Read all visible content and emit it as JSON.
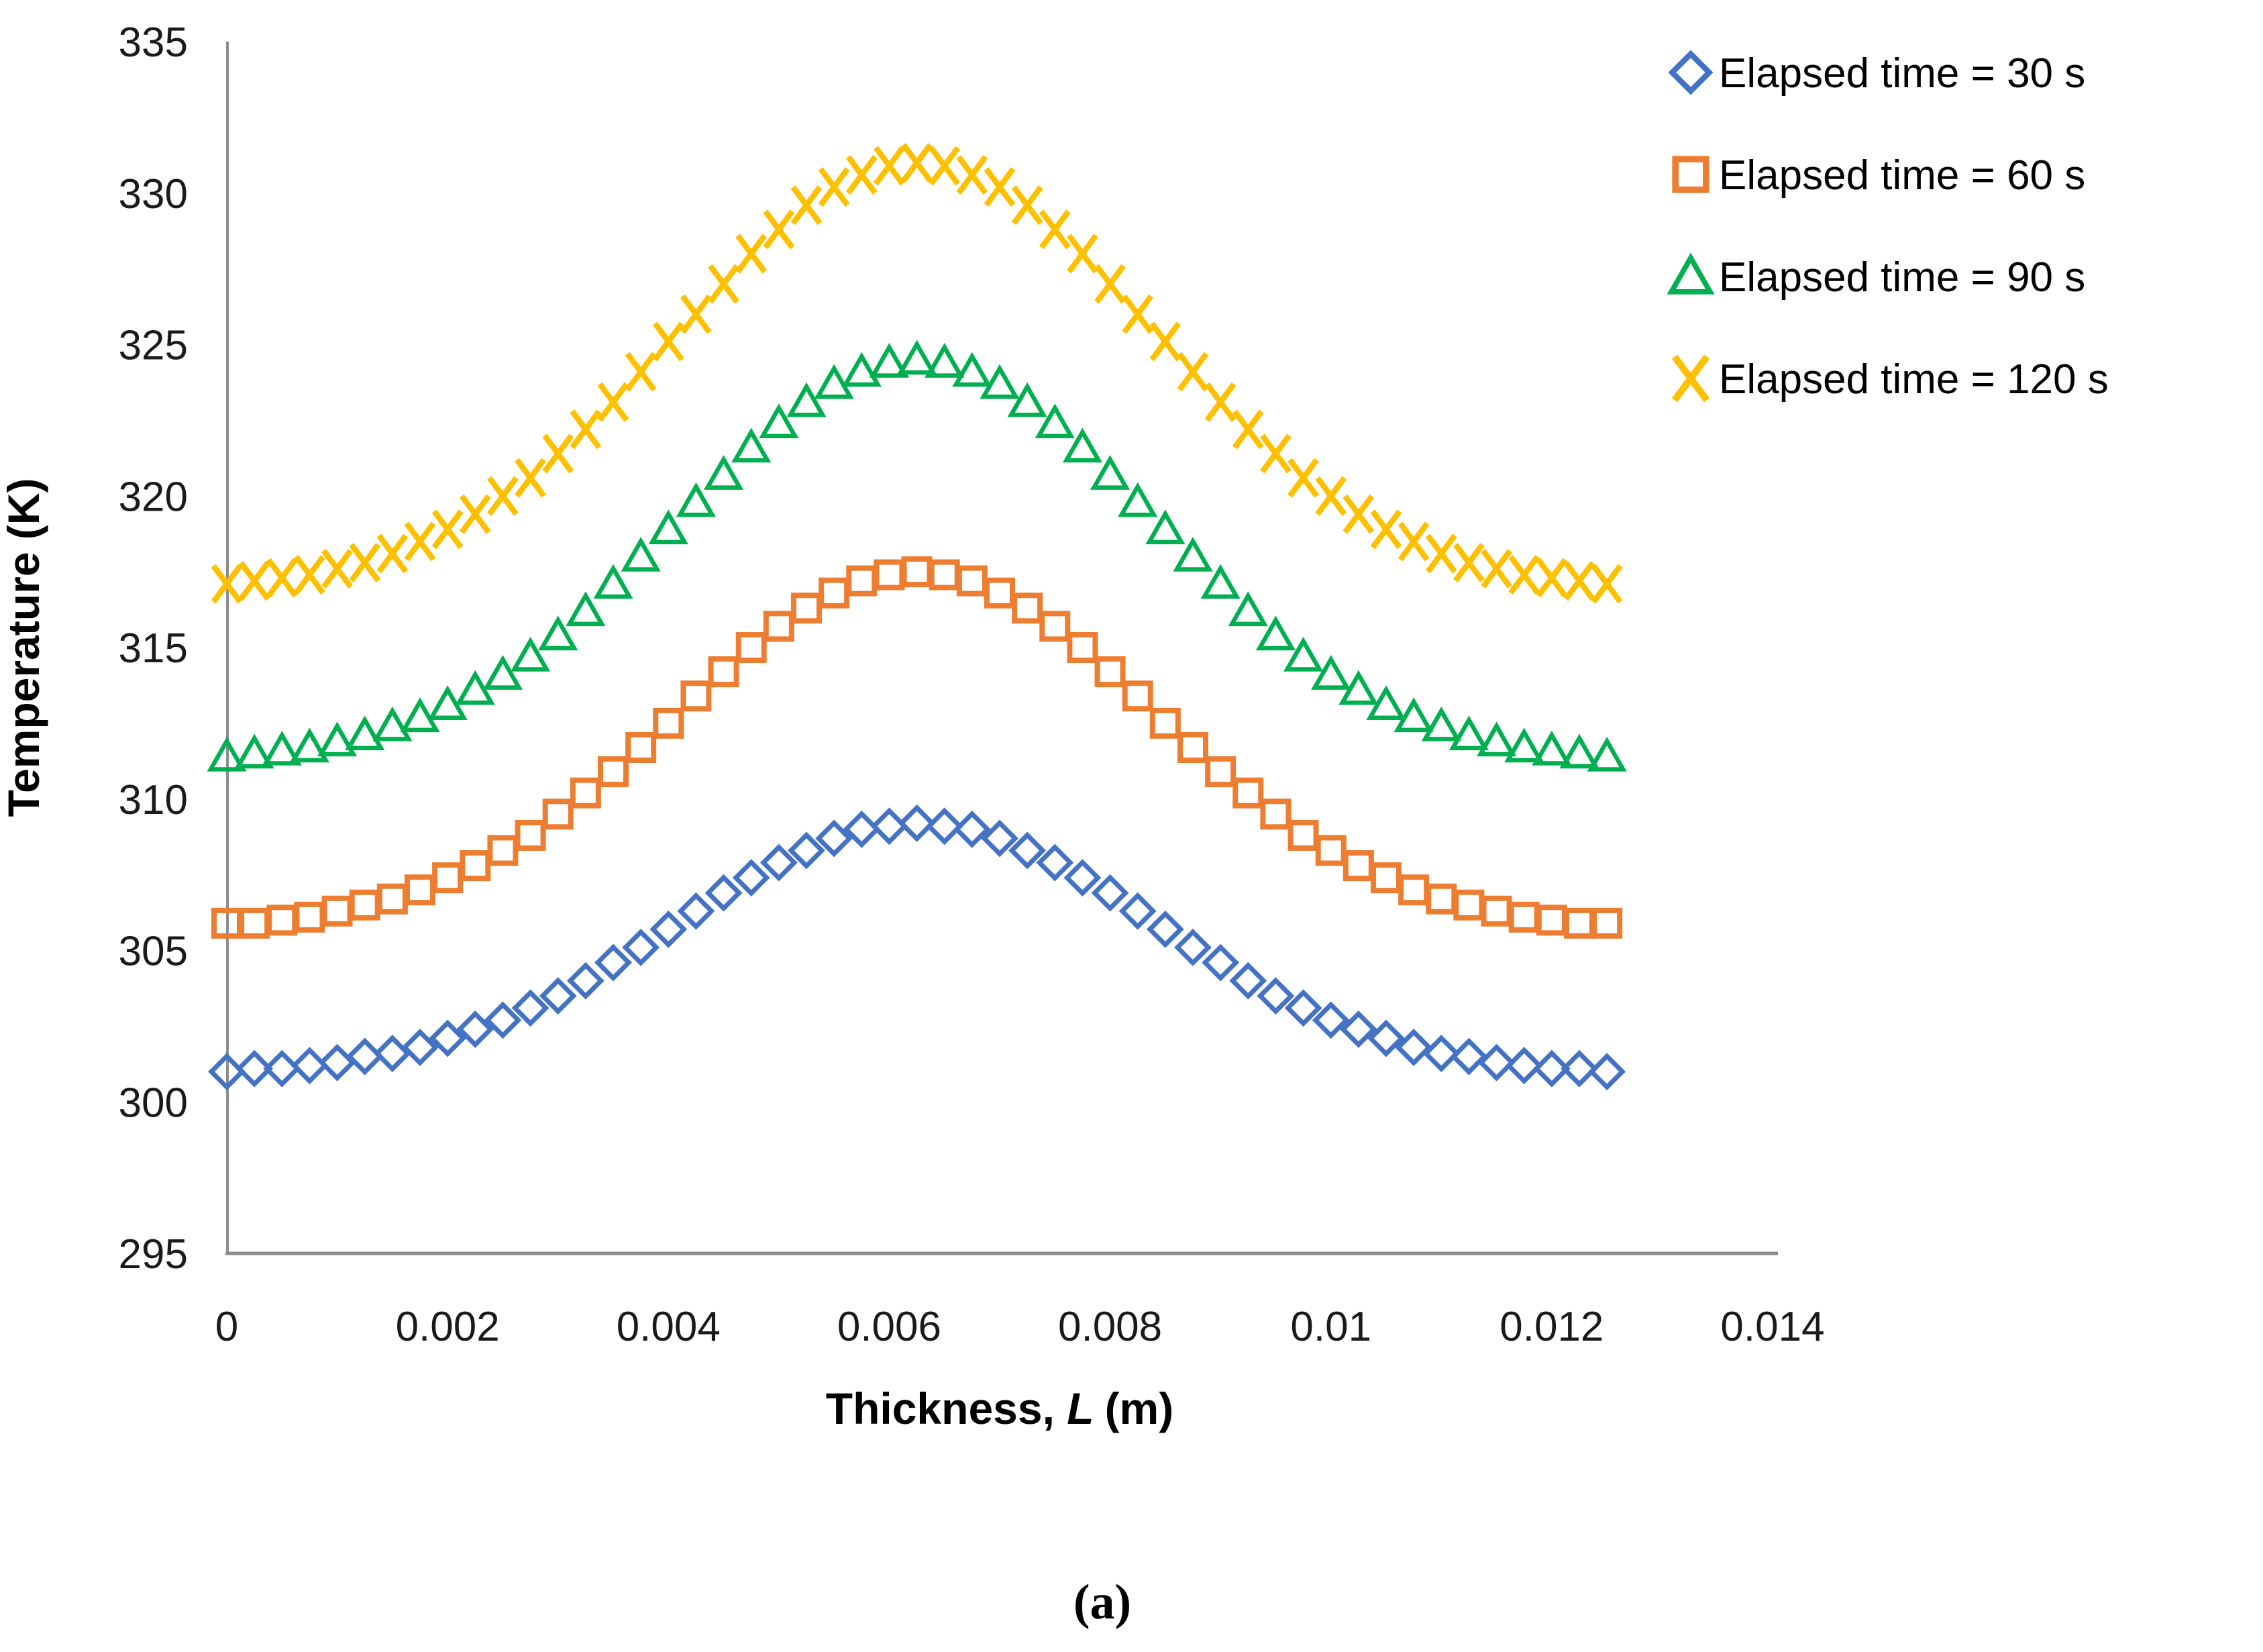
{
  "figure": {
    "caption": "(a)",
    "background_color": "#ffffff",
    "axis_line_color": "#8C8C8C",
    "text_color": "#000000"
  },
  "chart_data": {
    "type": "scatter",
    "title": "",
    "xlabel": "Thickness, L (m)",
    "xlabel_parts": {
      "prefix": "Thickness, ",
      "italic": "L",
      "suffix": "(m)"
    },
    "ylabel": "Temperature (K)",
    "xlim": [
      0,
      0.014
    ],
    "ylim": [
      295,
      335
    ],
    "x_ticks": [
      0,
      0.002,
      0.004,
      0.006,
      0.008,
      0.01,
      0.012,
      0.014
    ],
    "x_tick_labels": [
      "0",
      "0.002",
      "0.004",
      "0.006",
      "0.008",
      "0.01",
      "0.012",
      "0.014"
    ],
    "y_ticks": [
      335,
      330,
      325,
      320,
      315,
      310,
      305,
      300,
      295
    ],
    "y_tick_labels": [
      "335",
      "330",
      "325",
      "320",
      "315",
      "310",
      "305",
      "300",
      "295"
    ],
    "grid": false,
    "legend_position": "upper-right-outside",
    "x": [
      0,
      0.00025,
      0.0005,
      0.00075,
      0.001,
      0.00125,
      0.0015,
      0.00175,
      0.002,
      0.00225,
      0.0025,
      0.00275,
      0.003,
      0.00325,
      0.0035,
      0.00375,
      0.004,
      0.00425,
      0.0045,
      0.00475,
      0.005,
      0.00525,
      0.0055,
      0.00575,
      0.006,
      0.00625,
      0.0065,
      0.00675,
      0.007,
      0.00725,
      0.0075,
      0.00775,
      0.008,
      0.00825,
      0.0085,
      0.00875,
      0.009,
      0.00925,
      0.0095,
      0.00975,
      0.01,
      0.01025,
      0.0105,
      0.01075,
      0.011,
      0.01125,
      0.0115,
      0.01175,
      0.012,
      0.01225,
      0.0125
    ],
    "series": [
      {
        "name": "Elapsed time = 30 s",
        "marker": "diamond",
        "color": "#4472C4",
        "values": [
          301.0,
          301.1,
          301.1,
          301.2,
          301.3,
          301.5,
          301.6,
          301.8,
          302.1,
          302.4,
          302.7,
          303.1,
          303.5,
          304.0,
          304.6,
          305.1,
          305.7,
          306.3,
          306.9,
          307.4,
          307.9,
          308.3,
          308.7,
          309.0,
          309.1,
          309.2,
          309.1,
          309.0,
          308.7,
          308.3,
          307.9,
          307.4,
          306.9,
          306.3,
          305.7,
          305.1,
          304.6,
          304.0,
          303.5,
          303.1,
          302.7,
          302.4,
          302.1,
          301.8,
          301.6,
          301.5,
          301.3,
          301.2,
          301.1,
          301.1,
          301.0
        ]
      },
      {
        "name": "Elapsed time = 60 s",
        "marker": "square",
        "color": "#ED7D31",
        "values": [
          305.9,
          305.9,
          306.0,
          306.1,
          306.3,
          306.5,
          306.7,
          307.0,
          307.4,
          307.8,
          308.3,
          308.8,
          309.5,
          310.2,
          310.9,
          311.7,
          312.5,
          313.4,
          314.2,
          315.0,
          315.7,
          316.3,
          316.8,
          317.2,
          317.4,
          317.5,
          317.4,
          317.2,
          316.8,
          316.3,
          315.7,
          315.0,
          314.2,
          313.4,
          312.5,
          311.7,
          310.9,
          310.2,
          309.5,
          308.8,
          308.3,
          307.8,
          307.4,
          307.0,
          306.7,
          306.5,
          306.3,
          306.1,
          306.0,
          305.9,
          305.9
        ]
      },
      {
        "name": "Elapsed time = 90 s",
        "marker": "triangle",
        "color": "#00B050",
        "values": [
          311.4,
          311.5,
          311.6,
          311.7,
          311.9,
          312.1,
          312.4,
          312.7,
          313.1,
          313.6,
          314.1,
          314.7,
          315.4,
          316.2,
          317.1,
          318.0,
          318.9,
          319.8,
          320.7,
          321.6,
          322.4,
          323.1,
          323.7,
          324.1,
          324.4,
          324.5,
          324.4,
          324.1,
          323.7,
          323.1,
          322.4,
          321.6,
          320.7,
          319.8,
          318.9,
          318.0,
          317.1,
          316.2,
          315.4,
          314.7,
          314.1,
          313.6,
          313.1,
          312.7,
          312.4,
          312.1,
          311.9,
          311.7,
          311.6,
          311.5,
          311.4
        ]
      },
      {
        "name": "Elapsed time = 120 s",
        "marker": "x",
        "color": "#FFC000",
        "values": [
          317.1,
          317.2,
          317.3,
          317.4,
          317.6,
          317.8,
          318.1,
          318.5,
          318.9,
          319.4,
          320.0,
          320.6,
          321.4,
          322.2,
          323.1,
          324.1,
          325.1,
          326.0,
          327.0,
          328.0,
          328.8,
          329.6,
          330.2,
          330.6,
          330.9,
          331.0,
          330.9,
          330.6,
          330.2,
          329.6,
          328.8,
          328.0,
          327.0,
          326.0,
          325.1,
          324.1,
          323.1,
          322.2,
          321.4,
          320.6,
          320.0,
          319.4,
          318.9,
          318.5,
          318.1,
          317.8,
          317.6,
          317.4,
          317.3,
          317.2,
          317.1
        ]
      }
    ]
  }
}
